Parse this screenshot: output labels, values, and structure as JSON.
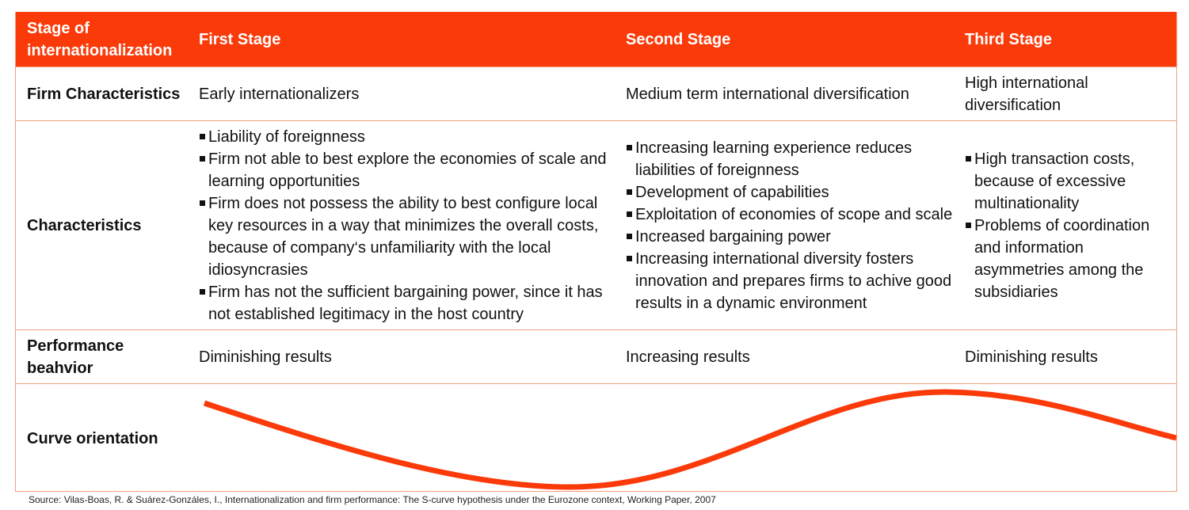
{
  "header": {
    "stage_label": "Stage of internationalization",
    "first": "First Stage",
    "second": "Second Stage",
    "third": "Third Stage"
  },
  "firm_characteristics": {
    "label": "Firm Characteristics",
    "first": "Early internationalizers",
    "second": "Medium term international diversification",
    "third": "High international diversification"
  },
  "characteristics": {
    "label": "Characteristics",
    "first": [
      "Liability of foreignness",
      "Firm not able to best explore the economies of scale and learning opportunities",
      "Firm does not possess the ability to best configure local key resources in a way that minimizes the overall costs, because of company‘s unfamiliarity with the local idiosyncrasies",
      "Firm has not the sufficient bargaining power, since it has not established legitimacy in the host country"
    ],
    "second": [
      "Increasing learning experience reduces liabilities of foreignness",
      "Development of capabilities",
      "Exploitation of economies of scope and scale",
      "Increased bargaining power",
      "Increasing international diversity fosters innovation and prepares firms to achive good results in a dynamic environment"
    ],
    "third": [
      "High transaction costs, because of excessive multinationality",
      "Problems of coordination and information asymmetries among the subsidiaries"
    ]
  },
  "performance": {
    "label": "Performance beahvior",
    "first": "Diminishing results",
    "second": "Increasing results",
    "third": "Diminishing results"
  },
  "curve": {
    "label": "Curve orientation",
    "color": "#fb3a0a"
  },
  "source": "Source: Vilas-Boas, R. & Suárez-Gonzáles, I., Internationalization and firm performance: The S-curve hypothesis under the Eurozone context, Working Paper, 2007",
  "colors": {
    "accent": "#fb3a0a",
    "border": "#f0a080"
  }
}
